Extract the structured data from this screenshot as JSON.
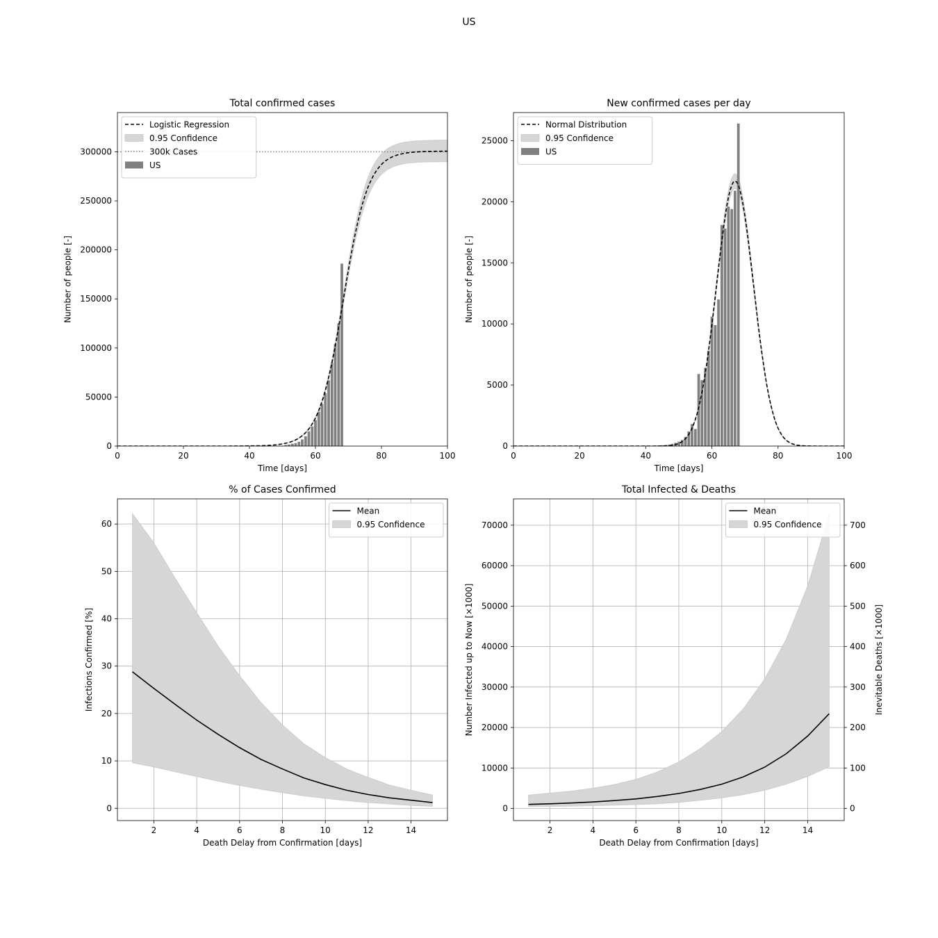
{
  "suptitle": "US",
  "chart_data": [
    {
      "type": "bar",
      "title": "Total confirmed cases",
      "xlabel": "Time [days]",
      "ylabel": "Number of people [-]",
      "xlim": [
        0,
        100
      ],
      "ylim": [
        0,
        340000
      ],
      "xticks": [
        0,
        20,
        40,
        60,
        80,
        100
      ],
      "yticks": [
        0,
        50000,
        100000,
        150000,
        200000,
        250000,
        300000
      ],
      "grid": false,
      "legend_position": "upper-left",
      "legend": [
        {
          "label": "Logistic Regression",
          "kind": "dashed-line"
        },
        {
          "label": "0.95 Confidence",
          "kind": "band"
        },
        {
          "label": "300k Cases",
          "kind": "dotted-line"
        },
        {
          "label": "US",
          "kind": "bar"
        }
      ],
      "bars": {
        "name": "US",
        "x": [
          40,
          41,
          42,
          43,
          44,
          45,
          46,
          47,
          48,
          49,
          50,
          51,
          52,
          53,
          54,
          55,
          56,
          57,
          58,
          59,
          60,
          61,
          62,
          63,
          64,
          65,
          66,
          67,
          68
        ],
        "values": [
          15,
          20,
          30,
          40,
          60,
          90,
          120,
          160,
          230,
          330,
          420,
          1100,
          1650,
          2400,
          3000,
          4400,
          6800,
          10000,
          15000,
          20000,
          26500,
          35000,
          43000,
          54000,
          67000,
          85000,
          104000,
          125000,
          186000
        ]
      },
      "fit": {
        "name": "Logistic Regression",
        "model": "logistic",
        "capacity": 300700,
        "midpoint_day": 68.5,
        "rate_per_day": 0.265,
        "confidence_capacity": [
          290000,
          312000
        ]
      },
      "reference_line": {
        "name": "300k Cases",
        "y": 300000
      }
    },
    {
      "type": "bar",
      "title": "New confirmed cases per day",
      "xlabel": "Time [days]",
      "ylabel": "Number of people [-]",
      "xlim": [
        0,
        100
      ],
      "ylim": [
        0,
        27300
      ],
      "xticks": [
        0,
        20,
        40,
        60,
        80,
        100
      ],
      "yticks": [
        0,
        5000,
        10000,
        15000,
        20000,
        25000
      ],
      "grid": false,
      "legend_position": "upper-left",
      "legend": [
        {
          "label": "Normal Distribution",
          "kind": "dashed-line"
        },
        {
          "label": "0.95 Confidence",
          "kind": "band"
        },
        {
          "label": "US",
          "kind": "bar"
        }
      ],
      "bars": {
        "name": "US",
        "x": [
          40,
          41,
          42,
          43,
          44,
          45,
          46,
          47,
          48,
          49,
          50,
          51,
          52,
          53,
          54,
          55,
          56,
          57,
          58,
          59,
          60,
          61,
          62,
          63,
          64,
          65,
          66,
          67,
          68
        ],
        "values": [
          10,
          20,
          25,
          40,
          50,
          70,
          90,
          120,
          180,
          270,
          360,
          500,
          750,
          1200,
          1800,
          1400,
          5900,
          5400,
          6400,
          7800,
          10600,
          9900,
          12000,
          18100,
          17800,
          19600,
          19400,
          20900,
          26400
        ]
      },
      "fit": {
        "name": "Normal Distribution",
        "model": "gaussian",
        "peak": 21700,
        "center_day": 67,
        "sigma_days": 5.6,
        "confidence_peak": [
          21100,
          22300
        ]
      }
    },
    {
      "type": "line",
      "title": "% of Cases Confirmed",
      "xlabel": "Death Delay from Confirmation [days]",
      "ylabel": "Infections Confirmed [%]",
      "xlim": [
        0.3,
        15.7
      ],
      "ylim": [
        -2.6,
        65.3
      ],
      "xticks": [
        2,
        4,
        6,
        8,
        10,
        12,
        14
      ],
      "yticks": [
        0,
        10,
        20,
        30,
        40,
        50,
        60
      ],
      "grid": true,
      "legend_position": "upper-right",
      "legend": [
        {
          "label": "Mean",
          "kind": "line"
        },
        {
          "label": "0.95 Confidence",
          "kind": "band"
        }
      ],
      "x": [
        1,
        2,
        3,
        4,
        5,
        6,
        7,
        8,
        9,
        10,
        11,
        12,
        13,
        14,
        15
      ],
      "series": [
        {
          "name": "Mean",
          "values": [
            28.8,
            25.3,
            21.9,
            18.6,
            15.6,
            12.8,
            10.3,
            8.3,
            6.4,
            5.0,
            3.8,
            2.9,
            2.2,
            1.7,
            1.2
          ]
        }
      ],
      "band": {
        "name": "0.95 Confidence",
        "lower": [
          9.6,
          8.7,
          7.7,
          6.7,
          5.7,
          4.8,
          4.0,
          3.3,
          2.6,
          2.1,
          1.6,
          1.2,
          0.9,
          0.6,
          0.4
        ],
        "upper": [
          62.2,
          56.0,
          48.5,
          41.3,
          34.2,
          28.0,
          22.3,
          17.6,
          13.6,
          10.7,
          8.3,
          6.5,
          4.9,
          3.8,
          2.8
        ]
      }
    },
    {
      "type": "line",
      "title": "Total Infected & Deaths",
      "xlabel": "Death Delay from Confirmation [days]",
      "ylabel": "Number Infected up to Now [×1000]",
      "y2label": "Inevitable Deaths [×1000]",
      "xlim": [
        0.3,
        15.7
      ],
      "ylim": [
        -3000,
        76500
      ],
      "y2lim": [
        -30,
        765
      ],
      "xticks": [
        2,
        4,
        6,
        8,
        10,
        12,
        14
      ],
      "yticks": [
        0,
        10000,
        20000,
        30000,
        40000,
        50000,
        60000,
        70000
      ],
      "y2ticks": [
        0,
        100,
        200,
        300,
        400,
        500,
        600,
        700
      ],
      "grid": true,
      "legend_position": "upper-right",
      "legend": [
        {
          "label": "Mean",
          "kind": "line"
        },
        {
          "label": "0.95 Confidence",
          "kind": "band"
        }
      ],
      "x": [
        1,
        2,
        3,
        4,
        5,
        6,
        7,
        8,
        9,
        10,
        11,
        12,
        13,
        14,
        15
      ],
      "series": [
        {
          "name": "Mean",
          "values": [
            1000,
            1150,
            1350,
            1600,
            1950,
            2350,
            2950,
            3700,
            4700,
            6000,
            7800,
            10200,
            13500,
            17900,
            23400
          ]
        }
      ],
      "band": {
        "name": "0.95 Confidence",
        "lower": [
          450,
          500,
          580,
          680,
          800,
          950,
          1150,
          1500,
          2000,
          2600,
          3400,
          4500,
          6000,
          7900,
          10300
        ],
        "upper": [
          3300,
          3800,
          4300,
          5000,
          5900,
          7200,
          9000,
          11500,
          14800,
          19000,
          24600,
          32000,
          41800,
          55000,
          72800
        ]
      }
    }
  ]
}
